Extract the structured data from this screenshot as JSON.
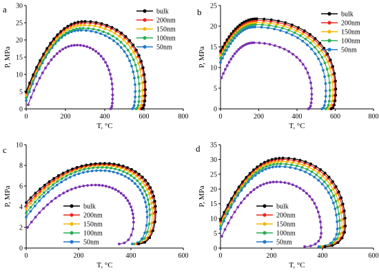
{
  "series_colors": {
    "bulk": "#000000",
    "200nm": "#e8251c",
    "150nm": "#f7b600",
    "100nm": "#27ad52",
    "50nm": "#1f78c8",
    "extra": "#7a2eb0"
  },
  "chart_data": [
    {
      "type": "line",
      "panel": "a",
      "xlabel": "T, °C",
      "ylabel": "P, MPa",
      "xlim": [
        0,
        800
      ],
      "ylim": [
        0,
        30
      ],
      "xticks": [
        "0",
        "200",
        "400",
        "600",
        "800"
      ],
      "yticks": [
        "0",
        "5",
        "10",
        "15",
        "20",
        "25",
        "30"
      ],
      "legend_position": "top-right",
      "series": [
        {
          "name": "bulk",
          "color_key": "bulk",
          "peak": [
            300,
            25.4
          ],
          "start": [
            0,
            5.0
          ],
          "end": [
            590,
            0
          ]
        },
        {
          "name": "200nm",
          "color_key": "200nm",
          "peak": [
            298,
            25.0
          ],
          "start": [
            0,
            4.6
          ],
          "end": [
            585,
            0
          ]
        },
        {
          "name": "150nm",
          "color_key": "150nm",
          "peak": [
            295,
            24.3
          ],
          "start": [
            0,
            4.0
          ],
          "end": [
            575,
            0
          ]
        },
        {
          "name": "100nm",
          "color_key": "100nm",
          "peak": [
            290,
            23.4
          ],
          "start": [
            0,
            3.2
          ],
          "end": [
            560,
            0
          ]
        },
        {
          "name": "50nm",
          "color_key": "50nm",
          "peak": [
            280,
            22.8
          ],
          "start": [
            0,
            2.4
          ],
          "end": [
            540,
            0
          ]
        },
        {
          "name": "",
          "color_key": "extra",
          "peak": [
            260,
            18.5
          ],
          "start": [
            10,
            1.2
          ],
          "end": [
            430,
            0
          ]
        }
      ]
    },
    {
      "type": "line",
      "panel": "b",
      "xlabel": "T, °C",
      "ylabel": "P, MPa",
      "xlim": [
        0,
        800
      ],
      "ylim": [
        0,
        25
      ],
      "xticks": [
        "0",
        "200",
        "400",
        "600",
        "800"
      ],
      "yticks": [
        "0",
        "5",
        "10",
        "15",
        "20",
        "25"
      ],
      "legend_position": "top-right",
      "series": [
        {
          "name": "bulk",
          "color_key": "bulk",
          "peak": [
            190,
            21.8
          ],
          "start": [
            0,
            14.0
          ],
          "end": [
            580,
            0
          ]
        },
        {
          "name": "200nm",
          "color_key": "200nm",
          "peak": [
            188,
            21.4
          ],
          "start": [
            0,
            13.6
          ],
          "end": [
            575,
            0
          ]
        },
        {
          "name": "150nm",
          "color_key": "150nm",
          "peak": [
            186,
            20.9
          ],
          "start": [
            0,
            13.0
          ],
          "end": [
            565,
            0
          ]
        },
        {
          "name": "100nm",
          "color_key": "100nm",
          "peak": [
            183,
            20.4
          ],
          "start": [
            0,
            12.2
          ],
          "end": [
            550,
            0
          ]
        },
        {
          "name": "50nm",
          "color_key": "50nm",
          "peak": [
            180,
            19.8
          ],
          "start": [
            0,
            11.2
          ],
          "end": [
            530,
            0
          ]
        },
        {
          "name": "",
          "color_key": "extra",
          "peak": [
            175,
            16.0
          ],
          "start": [
            5,
            7.5
          ],
          "end": [
            460,
            0
          ]
        }
      ]
    },
    {
      "type": "line",
      "panel": "c",
      "xlabel": "T, °C",
      "ylabel": "P, MPa",
      "xlim": [
        0,
        600
      ],
      "ylim": [
        0,
        10
      ],
      "xticks": [
        "0",
        "200",
        "400",
        "600"
      ],
      "yticks": [
        "0",
        "2",
        "4",
        "6",
        "8",
        "10"
      ],
      "legend_position": "bottom-left",
      "series": [
        {
          "name": "bulk",
          "color_key": "bulk",
          "peak": [
            300,
            8.2
          ],
          "start": [
            0,
            4.4
          ],
          "end": [
            430,
            0.4
          ],
          "back": [
            495,
            3.5
          ]
        },
        {
          "name": "200nm",
          "color_key": "200nm",
          "peak": [
            298,
            8.1
          ],
          "start": [
            0,
            4.1
          ],
          "end": [
            425,
            0.4
          ],
          "back": [
            490,
            3.4
          ]
        },
        {
          "name": "150nm",
          "color_key": "150nm",
          "peak": [
            295,
            8.0
          ],
          "start": [
            0,
            3.8
          ],
          "end": [
            420,
            0.4
          ],
          "back": [
            482,
            3.3
          ]
        },
        {
          "name": "100nm",
          "color_key": "100nm",
          "peak": [
            290,
            7.8
          ],
          "start": [
            0,
            3.4
          ],
          "end": [
            412,
            0.4
          ],
          "back": [
            472,
            3.2
          ]
        },
        {
          "name": "50nm",
          "color_key": "50nm",
          "peak": [
            285,
            7.5
          ],
          "start": [
            0,
            3.0
          ],
          "end": [
            405,
            0.4
          ],
          "back": [
            462,
            3.0
          ]
        },
        {
          "name": "",
          "color_key": "extra",
          "peak": [
            265,
            6.1
          ],
          "start": [
            5,
            2.0
          ],
          "end": [
            355,
            0.4
          ],
          "back": [
            410,
            2.5
          ]
        }
      ]
    },
    {
      "type": "line",
      "panel": "d",
      "xlabel": "T, °C",
      "ylabel": "P, MPa",
      "xlim": [
        0,
        600
      ],
      "ylim": [
        0,
        35
      ],
      "xticks": [
        "0",
        "200",
        "400",
        "600"
      ],
      "yticks": [
        "0",
        "5",
        "10",
        "15",
        "20",
        "25",
        "30",
        "35"
      ],
      "legend_position": "bottom-left",
      "series": [
        {
          "name": "bulk",
          "color_key": "bulk",
          "peak": [
            245,
            30.5
          ],
          "start": [
            0,
            9.5
          ],
          "end": [
            410,
            0.5
          ],
          "back": [
            490,
            7.5
          ]
        },
        {
          "name": "200nm",
          "color_key": "200nm",
          "peak": [
            243,
            30.0
          ],
          "start": [
            0,
            9.0
          ],
          "end": [
            405,
            0.5
          ],
          "back": [
            485,
            7.3
          ]
        },
        {
          "name": "150nm",
          "color_key": "150nm",
          "peak": [
            240,
            29.3
          ],
          "start": [
            0,
            8.3
          ],
          "end": [
            400,
            0.5
          ],
          "back": [
            477,
            7.0
          ]
        },
        {
          "name": "100nm",
          "color_key": "100nm",
          "peak": [
            236,
            28.5
          ],
          "start": [
            0,
            7.5
          ],
          "end": [
            393,
            0.5
          ],
          "back": [
            468,
            6.8
          ]
        },
        {
          "name": "50nm",
          "color_key": "50nm",
          "peak": [
            232,
            27.6
          ],
          "start": [
            0,
            6.5
          ],
          "end": [
            385,
            0.5
          ],
          "back": [
            458,
            6.5
          ]
        },
        {
          "name": "",
          "color_key": "extra",
          "peak": [
            220,
            22.4
          ],
          "start": [
            5,
            4.0
          ],
          "end": [
            330,
            0.5
          ],
          "back": [
            395,
            5.0
          ]
        }
      ]
    }
  ]
}
